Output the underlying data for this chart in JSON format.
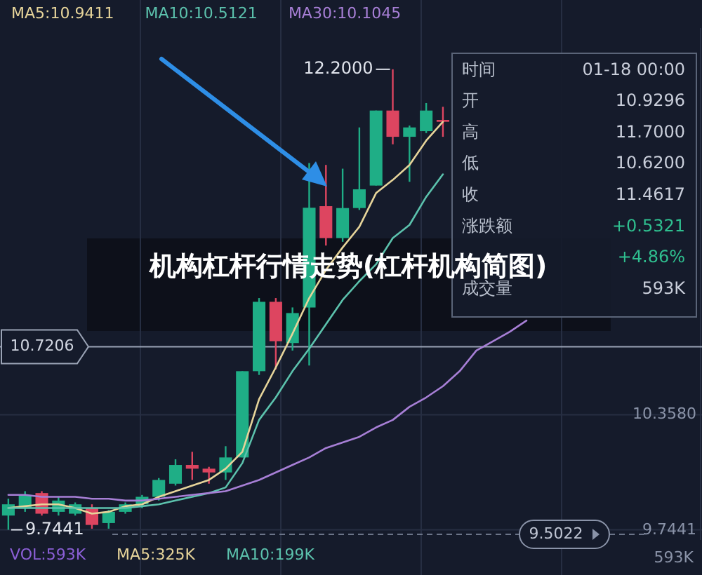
{
  "chart_data": {
    "type": "candlestick",
    "title": "机构杠杆行情走势(杠杆机构简图)",
    "categories": [
      null,
      null,
      null,
      null,
      null,
      null,
      null,
      null,
      null,
      null,
      null,
      null,
      null,
      null,
      null,
      null,
      null,
      null,
      null,
      null,
      null,
      null,
      null,
      null,
      null,
      null,
      null,
      null,
      null,
      null,
      null,
      null,
      null,
      null,
      null,
      null,
      null,
      null,
      null,
      null,
      null,
      null
    ],
    "ohlc": [
      [
        9.82,
        9.91,
        9.7441,
        9.88
      ],
      [
        9.86,
        9.95,
        9.84,
        9.93
      ],
      [
        9.94,
        9.95,
        9.82,
        9.83
      ],
      [
        9.84,
        9.92,
        9.82,
        9.9
      ],
      [
        9.83,
        9.89,
        9.82,
        9.88
      ],
      [
        9.86,
        9.88,
        9.75,
        9.77
      ],
      [
        9.78,
        9.85,
        9.75,
        9.84
      ],
      [
        9.84,
        9.89,
        9.83,
        9.88
      ],
      [
        9.88,
        9.93,
        9.86,
        9.92
      ],
      [
        9.92,
        10.02,
        9.9,
        10.01
      ],
      [
        9.99,
        10.12,
        9.98,
        10.09
      ],
      [
        10.09,
        10.16,
        10.01,
        10.07
      ],
      [
        10.07,
        10.08,
        9.99,
        10.05
      ],
      [
        10.05,
        10.19,
        10.01,
        10.13
      ],
      [
        10.13,
        10.59,
        10.13,
        10.59
      ],
      [
        10.59,
        10.98,
        10.57,
        10.96
      ],
      [
        10.96,
        10.98,
        10.6,
        10.75
      ],
      [
        10.74,
        10.93,
        10.7,
        10.9
      ],
      [
        10.9296,
        11.7,
        10.62,
        11.4617
      ],
      [
        11.47,
        11.69,
        11.26,
        11.3
      ],
      [
        11.3,
        11.67,
        11.28,
        11.46
      ],
      [
        11.46,
        11.89,
        11.45,
        11.56
      ],
      [
        11.58,
        11.98,
        11.58,
        11.98
      ],
      [
        11.98,
        12.2,
        11.8,
        11.84
      ],
      [
        11.84,
        11.9,
        11.6,
        11.89
      ],
      [
        11.87,
        12.02,
        11.86,
        11.98
      ],
      [
        11.93,
        12.0,
        11.84,
        11.92
      ],
      null,
      null,
      null,
      null,
      null,
      null,
      null,
      null,
      null,
      null,
      null,
      null,
      null,
      null,
      null
    ],
    "colors": [
      "#1fae86",
      "#1fae86",
      "#dd4560",
      "#1fae86",
      "#1fae86",
      "#dd4560",
      "#1fae86",
      "#1fae86",
      "#1fae86",
      "#1fae86",
      "#1fae86",
      "#dd4560",
      "#dd4560",
      "#1fae86",
      "#1fae86",
      "#1fae86",
      "#dd4560",
      "#1fae86",
      "#1fae86",
      "#dd4560",
      "#1fae86",
      "#1fae86",
      "#1fae86",
      "#dd4560",
      "#1fae86",
      "#1fae86",
      "#dd4560",
      null,
      null,
      null,
      null,
      null,
      null,
      null,
      null,
      null,
      null,
      null,
      null,
      null,
      null,
      null
    ],
    "series": [
      {
        "name": "MA5:10.9411",
        "type": "line",
        "color": "#e6d49a",
        "values": [
          9.86,
          9.87,
          9.88,
          9.88,
          9.86,
          9.83,
          9.84,
          9.87,
          9.88,
          9.92,
          9.95,
          9.98,
          10.01,
          10.07,
          10.16,
          10.44,
          10.61,
          10.79,
          10.98,
          11.13,
          11.25,
          11.36,
          11.54,
          11.61,
          11.69,
          11.82,
          11.92,
          null,
          null,
          null,
          null,
          null,
          null,
          null,
          null,
          null,
          null,
          null,
          null,
          null,
          null,
          null
        ]
      },
      {
        "name": "MA10:10.5121",
        "type": "line",
        "color": "#5cc2ad",
        "values": [
          9.86,
          9.86,
          9.86,
          9.86,
          9.86,
          9.86,
          9.86,
          9.86,
          9.87,
          9.88,
          9.9,
          9.92,
          9.94,
          9.97,
          10.1,
          10.33,
          10.45,
          10.59,
          10.71,
          10.84,
          10.97,
          11.07,
          11.16,
          11.3,
          11.37,
          11.52,
          11.64,
          null,
          null,
          null,
          null,
          null,
          null,
          null,
          null,
          null,
          null,
          null,
          null,
          null,
          null,
          null
        ]
      },
      {
        "name": "MA30:10.1045",
        "type": "line",
        "color": "#a77fd6",
        "values": [
          9.93,
          9.93,
          9.92,
          9.92,
          9.92,
          9.91,
          9.91,
          9.9,
          9.9,
          9.91,
          9.92,
          9.93,
          9.94,
          9.95,
          9.98,
          10.01,
          10.05,
          10.09,
          10.13,
          10.18,
          10.21,
          10.24,
          10.29,
          10.33,
          10.4,
          10.45,
          10.51,
          10.59,
          10.7,
          10.75,
          10.8,
          10.86,
          null,
          null,
          null,
          null,
          null,
          null,
          null,
          null,
          null,
          null
        ]
      }
    ],
    "ylim": [
      9.69,
      12.42
    ],
    "yticks": [
      {
        "value": 10.358,
        "label": "10.3580"
      },
      {
        "value": 9.7441,
        "label": "9.7441"
      }
    ],
    "grid": true,
    "legend": "top left",
    "ref_lines": [
      {
        "axis": "y",
        "value": 10.7206,
        "label": "10.7206",
        "color": "#9aa3b5"
      }
    ],
    "annotations": [
      "12.2000",
      "9.7441",
      "9.5022",
      "593K",
      "VOL:593K",
      "MA5:325K",
      "MA10:199K",
      "时间",
      "01-18 00:00",
      "开",
      "10.9296",
      "高",
      "11.7000",
      "低",
      "10.6200",
      "收",
      "11.4617",
      "涨跌额",
      "+0.5321",
      "+4.86%",
      "成交量",
      "593K"
    ]
  }
}
